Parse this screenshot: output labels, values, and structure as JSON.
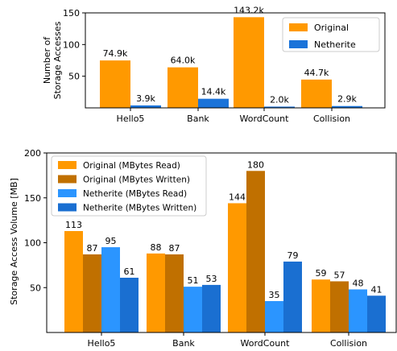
{
  "chart_data": [
    {
      "type": "bar",
      "title": "",
      "xlabel": "",
      "ylabel": "Number of Storage Accesses",
      "ylabel_lines": [
        "Number of",
        "Storage Accesses"
      ],
      "categories": [
        "Hello5",
        "Bank",
        "WordCount",
        "Collision"
      ],
      "ylim": [
        0,
        150
      ],
      "yticks": [
        50,
        100,
        150
      ],
      "grid": false,
      "legend_placement": "top-right",
      "series": [
        {
          "name": "Original",
          "color": "#ff9900",
          "values": [
            74.9,
            64.0,
            143.2,
            44.7
          ],
          "labels": [
            "74.9k",
            "64.0k",
            "143.2k",
            "44.7k"
          ]
        },
        {
          "name": "Netherite",
          "color": "#1a73d9",
          "values": [
            3.9,
            14.4,
            2.0,
            2.9
          ],
          "labels": [
            "3.9k",
            "14.4k",
            "2.0k",
            "2.9k"
          ]
        }
      ]
    },
    {
      "type": "bar",
      "title": "",
      "xlabel": "",
      "ylabel": "Storage Access Volume [MB]",
      "ylabel_lines": [
        "Storage Access Volume [MB]"
      ],
      "categories": [
        "Hello5",
        "Bank",
        "WordCount",
        "Collision"
      ],
      "ylim": [
        0,
        200
      ],
      "yticks": [
        50,
        100,
        150,
        200
      ],
      "grid": false,
      "legend_placement": "top-left",
      "series": [
        {
          "name": "Original (MBytes Read)",
          "color": "#ff9900",
          "values": [
            113,
            88,
            144,
            59
          ],
          "labels": [
            "113",
            "88",
            "144",
            "59"
          ]
        },
        {
          "name": "Original (MBytes Written)",
          "color": "#c07000",
          "values": [
            87,
            87,
            180,
            57
          ],
          "labels": [
            "87",
            "87",
            "180",
            "57"
          ]
        },
        {
          "name": "Netherite (MBytes Read)",
          "color": "#2b95ff",
          "values": [
            95,
            51,
            35,
            48
          ],
          "labels": [
            "95",
            "51",
            "35",
            "48"
          ]
        },
        {
          "name": "Netherite (MBytes Written)",
          "color": "#1a6fd1",
          "values": [
            61,
            53,
            79,
            41
          ],
          "labels": [
            "61",
            "53",
            "79",
            "41"
          ]
        }
      ]
    }
  ]
}
